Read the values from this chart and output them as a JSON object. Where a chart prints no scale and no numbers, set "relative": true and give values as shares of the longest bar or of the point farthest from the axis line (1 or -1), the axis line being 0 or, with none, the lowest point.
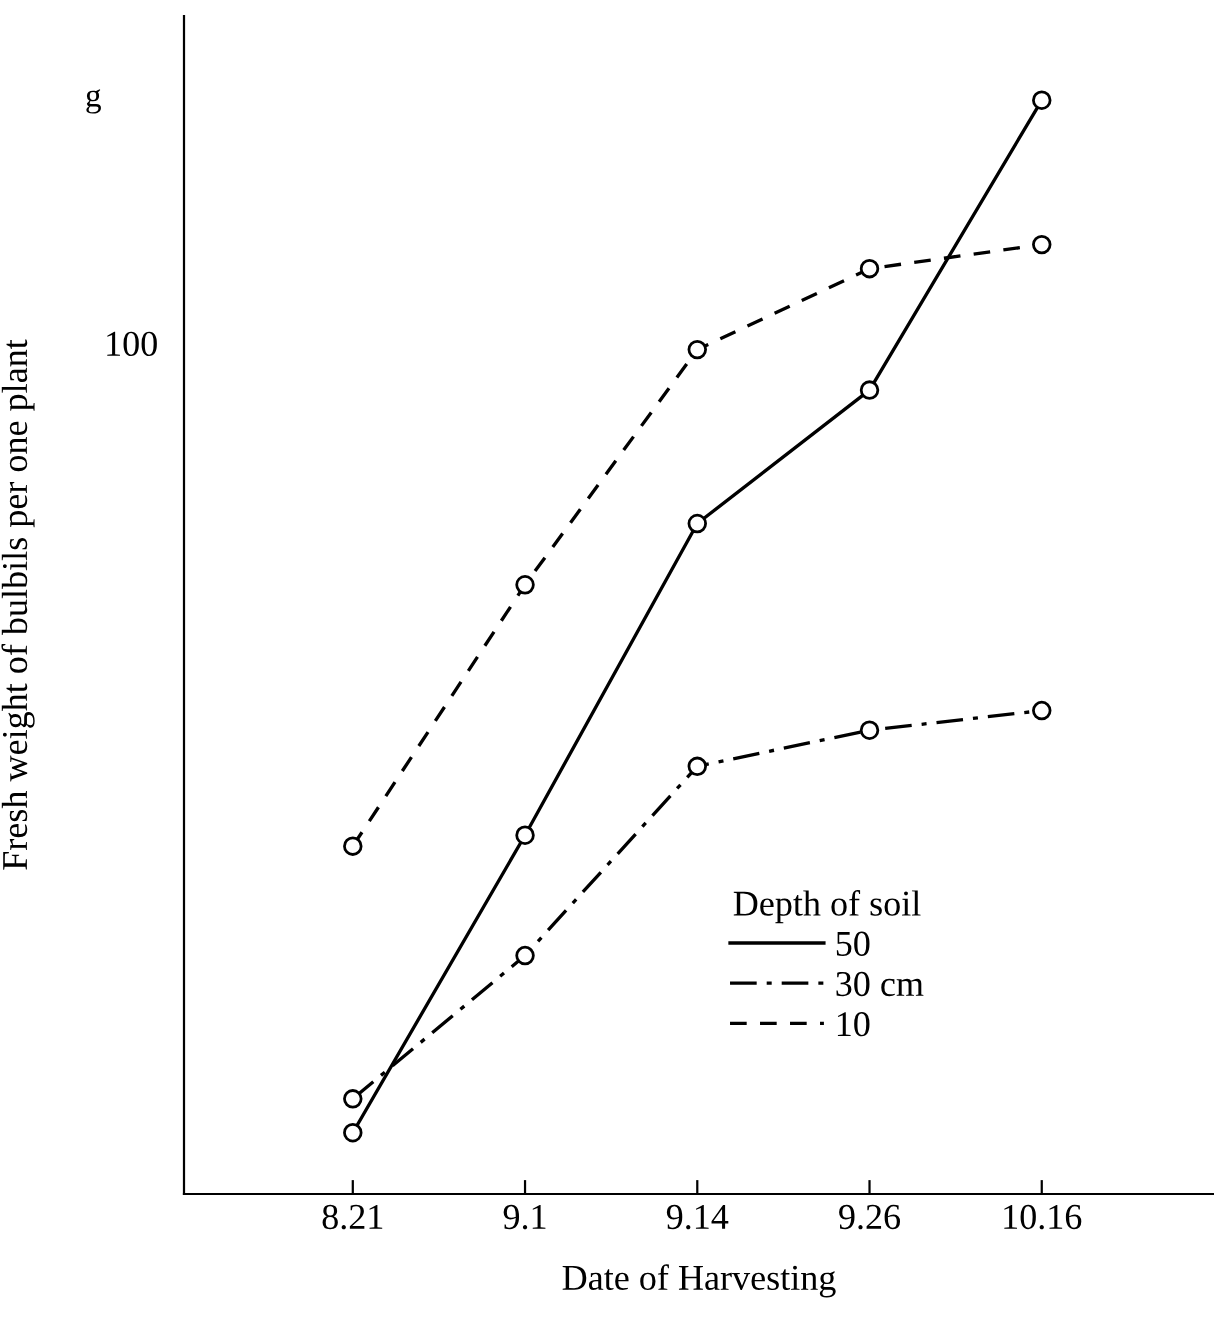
{
  "chart_data": {
    "type": "line",
    "relative": true,
    "xlabel": "Date of Harvesting",
    "ylabel": "Fresh weight of bulbils per one plant",
    "legend_title": "Depth of soil",
    "annotations": [
      "g",
      "100"
    ],
    "categories": [
      "8.21",
      "9.1",
      "9.14",
      "9.26",
      "10.16"
    ],
    "series": [
      {
        "name": "50",
        "color": "#000000",
        "line_style": "solid",
        "values": [
          0.056,
          0.328,
          0.613,
          0.735,
          1
        ]
      },
      {
        "name": "30 cm",
        "color": "#000000",
        "line_style": "dashdot",
        "values": [
          0.087,
          0.218,
          0.391,
          0.424,
          0.442
        ]
      },
      {
        "name": "10",
        "color": "#000000",
        "line_style": "dashed",
        "values": [
          0.318,
          0.557,
          0.772,
          0.846,
          0.868
        ]
      }
    ],
    "marker": "circle",
    "legend": "bottom right",
    "grid": false
  }
}
